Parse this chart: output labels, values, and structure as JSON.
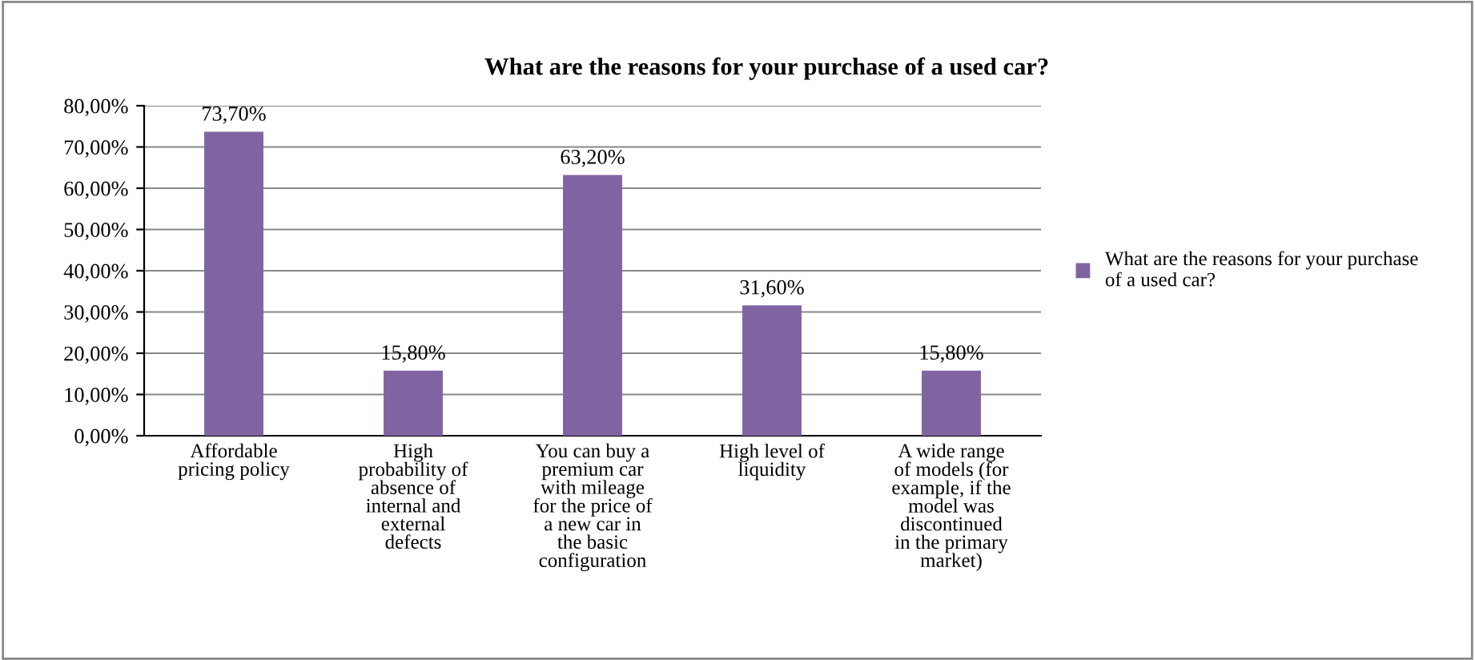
{
  "chart_data": {
    "type": "bar",
    "title": "What are the reasons for your purchase of a used car?",
    "categories": [
      "Affordable\npricing policy",
      "High\nprobability of\nabsence of\ninternal and\nexternal\ndefects",
      "You can buy a\npremium car\nwith mileage\nfor the price of\na new car in\nthe basic\nconfiguration",
      "High level of\nliquidity",
      "A wide range\nof models (for\nexample, if the\nmodel was\ndiscontinued\nin the primary\nmarket)"
    ],
    "series": [
      {
        "name": "What are the reasons for your purchase of a used car?",
        "color": "#8064a2",
        "values": [
          73.7,
          15.8,
          63.2,
          31.6,
          15.8
        ],
        "value_labels": [
          "73,70%",
          "15,80%",
          "63,20%",
          "31,60%",
          "15,80%"
        ]
      }
    ],
    "ylim": [
      0,
      80
    ],
    "yticks": [
      {
        "value": 0,
        "label": "0,00%"
      },
      {
        "value": 10,
        "label": "10,00%"
      },
      {
        "value": 20,
        "label": "20,00%"
      },
      {
        "value": 30,
        "label": "30,00%"
      },
      {
        "value": 40,
        "label": "40,00%"
      },
      {
        "value": 50,
        "label": "50,00%"
      },
      {
        "value": 60,
        "label": "60,00%"
      },
      {
        "value": 70,
        "label": "70,00%"
      },
      {
        "value": 80,
        "label": "80,00%"
      }
    ],
    "grid": "y",
    "legend": "right"
  }
}
